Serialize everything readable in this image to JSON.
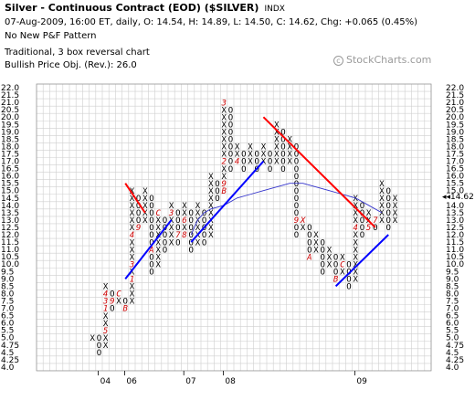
{
  "header": {
    "title": "Silver - Continuous Contract (EOD) ($SILVER)",
    "symbol_tag": "INDX",
    "quote_line": "07-Aug-2009, 16:00 ET, daily, O: 14.54, H: 14.89, L: 14.50, C: 14.62, Chg: +0.065 (0.45%)",
    "pattern": "No New P&F Pattern",
    "method": "Traditional, 3 box reversal chart",
    "objective": "Bullish Price Obj. (Rev.): 26.0"
  },
  "watermark": {
    "symbol": "c",
    "text": "StockCharts.com"
  },
  "chart_data": {
    "type": "point-and-figure",
    "box_levels": [
      "22.0",
      "21.5",
      "21.0",
      "20.5",
      "20.0",
      "19.5",
      "19.0",
      "18.5",
      "18.0",
      "17.5",
      "17.0",
      "16.5",
      "16.0",
      "15.5",
      "15.0",
      "14.5",
      "14.0",
      "13.5",
      "13.0",
      "12.5",
      "12.0",
      "11.5",
      "11.0",
      "10.5",
      "10.0",
      "9.5",
      "9.0",
      "8.5",
      "8.0",
      "7.5",
      "7.0",
      "6.5",
      "6.0",
      "5.5",
      "5.0",
      "4.75",
      "4.5",
      "4.25",
      "4.0"
    ],
    "x_labels": [
      {
        "label": "04",
        "col": 2
      },
      {
        "label": "06",
        "col": 6
      },
      {
        "label": "07",
        "col": 15
      },
      {
        "label": "08",
        "col": 21
      },
      {
        "label": "09",
        "col": 41
      }
    ],
    "current_price": "14.62",
    "last_close_row_label": "14.5",
    "grid": true,
    "columns": [
      {
        "type": "X",
        "low": 5,
        "high": 5
      },
      {
        "type": "O",
        "high": 5,
        "low": 4.5
      },
      {
        "type": "X",
        "low": 4.75,
        "high": 8.5
      },
      {
        "type": "O",
        "high": 8.0,
        "low": 7.0
      },
      {
        "type": "X",
        "low": 7.5,
        "high": 8.0
      },
      {
        "type": "O",
        "high": 7.5,
        "low": 7.0
      },
      {
        "type": "X",
        "low": 7.5,
        "high": 15.0
      },
      {
        "type": "O",
        "high": 14.5,
        "low": 12.5
      },
      {
        "type": "X",
        "low": 13.0,
        "high": 15.0
      },
      {
        "type": "O",
        "high": 14.5,
        "low": 9.5
      },
      {
        "type": "X",
        "low": 10.0,
        "high": 13.5
      },
      {
        "type": "O",
        "high": 13.0,
        "low": 11.0
      },
      {
        "type": "X",
        "low": 11.5,
        "high": 14.0
      },
      {
        "type": "O",
        "high": 13.5,
        "low": 11.5
      },
      {
        "type": "X",
        "low": 12.0,
        "high": 14.0
      },
      {
        "type": "O",
        "high": 13.5,
        "low": 11.0
      },
      {
        "type": "X",
        "low": 11.5,
        "high": 14.0
      },
      {
        "type": "O",
        "high": 13.5,
        "low": 11.5
      },
      {
        "type": "X",
        "low": 12.0,
        "high": 16.0
      },
      {
        "type": "O",
        "high": 15.5,
        "low": 14.5
      },
      {
        "type": "X",
        "low": 15.0,
        "high": 21.0
      },
      {
        "type": "O",
        "high": 20.5,
        "low": 16.5
      },
      {
        "type": "X",
        "low": 17.0,
        "high": 18.0
      },
      {
        "type": "O",
        "high": 17.5,
        "low": 16.5
      },
      {
        "type": "X",
        "low": 17.0,
        "high": 18.0
      },
      {
        "type": "O",
        "high": 17.5,
        "low": 16.5
      },
      {
        "type": "X",
        "low": 17.0,
        "high": 18.0
      },
      {
        "type": "O",
        "high": 17.5,
        "low": 16.5
      },
      {
        "type": "X",
        "low": 17.0,
        "high": 19.5
      },
      {
        "type": "O",
        "high": 19.0,
        "low": 16.5
      },
      {
        "type": "X",
        "low": 17.0,
        "high": 18.5
      },
      {
        "type": "O",
        "high": 18.0,
        "low": 12.0
      },
      {
        "type": "X",
        "low": 12.5,
        "high": 13.0
      },
      {
        "type": "O",
        "high": 12.5,
        "low": 10.5
      },
      {
        "type": "X",
        "low": 11.0,
        "high": 12.0
      },
      {
        "type": "O",
        "high": 11.5,
        "low": 9.5
      },
      {
        "type": "X",
        "low": 10.0,
        "high": 11.0
      },
      {
        "type": "O",
        "high": 10.5,
        "low": 9.0
      },
      {
        "type": "X",
        "low": 9.5,
        "high": 10.5
      },
      {
        "type": "O",
        "high": 10.0,
        "low": 8.5
      },
      {
        "type": "X",
        "low": 9.0,
        "high": 14.5
      },
      {
        "type": "O",
        "high": 14.0,
        "low": 12.0
      },
      {
        "type": "X",
        "low": 12.5,
        "high": 13.5
      },
      {
        "type": "O",
        "high": 13.0,
        "low": 12.5
      },
      {
        "type": "X",
        "low": 13.0,
        "high": 15.5
      },
      {
        "type": "O",
        "high": 15.0,
        "low": 12.5
      },
      {
        "type": "X",
        "low": 13.0,
        "high": 14.5
      }
    ],
    "month_markers": [
      {
        "col": 0,
        "price": 5.5,
        "label": "2"
      },
      {
        "col": 0,
        "price": 4.25,
        "label": "7"
      },
      {
        "col": 1,
        "price": 5.5,
        "label": "C"
      },
      {
        "col": 2,
        "price": 5.5,
        "label": "5"
      },
      {
        "col": 2,
        "price": 7.0,
        "label": "1"
      },
      {
        "col": 2,
        "price": 7.5,
        "label": "3"
      },
      {
        "col": 2,
        "price": 8.0,
        "label": "4"
      },
      {
        "col": 3,
        "price": 7.5,
        "label": "9"
      },
      {
        "col": 4,
        "price": 6.5,
        "label": "8"
      },
      {
        "col": 4,
        "price": 8.0,
        "label": "C"
      },
      {
        "col": 5,
        "price": 7.0,
        "label": "B"
      },
      {
        "col": 6,
        "price": 9.0,
        "label": "1"
      },
      {
        "col": 6,
        "price": 10.0,
        "label": "3"
      },
      {
        "col": 6,
        "price": 12.0,
        "label": "4"
      },
      {
        "col": 7,
        "price": 11.5,
        "label": "6"
      },
      {
        "col": 7,
        "price": 12.5,
        "label": "9"
      },
      {
        "col": 8,
        "price": 11.5,
        "label": "7"
      },
      {
        "col": 8,
        "price": 12.0,
        "label": "B"
      },
      {
        "col": 9,
        "price": 11.0,
        "label": "A"
      },
      {
        "col": 10,
        "price": 13.5,
        "label": "C"
      },
      {
        "col": 12,
        "price": 13.5,
        "label": "3"
      },
      {
        "col": 13,
        "price": 12.0,
        "label": "7"
      },
      {
        "col": 14,
        "price": 12.0,
        "label": "8"
      },
      {
        "col": 14,
        "price": 13.0,
        "label": "6"
      },
      {
        "col": 20,
        "price": 15.0,
        "label": "B"
      },
      {
        "col": 20,
        "price": 15.5,
        "label": "9"
      },
      {
        "col": 20,
        "price": 14.5,
        "label": "A"
      },
      {
        "col": 20,
        "price": 17.0,
        "label": "2"
      },
      {
        "col": 20,
        "price": 21.0,
        "label": "3"
      },
      {
        "col": 21,
        "price": 14.5,
        "label": "1"
      },
      {
        "col": 22,
        "price": 17.0,
        "label": "4"
      },
      {
        "col": 30,
        "price": 16.5,
        "label": "7"
      },
      {
        "col": 30,
        "price": 16.0,
        "label": "8"
      },
      {
        "col": 31,
        "price": 13.0,
        "label": "9"
      },
      {
        "col": 32,
        "price": 13.0,
        "label": "X"
      },
      {
        "col": 33,
        "price": 10.5,
        "label": "A"
      },
      {
        "col": 37,
        "price": 9.0,
        "label": "B"
      },
      {
        "col": 38,
        "price": 10.0,
        "label": "C"
      },
      {
        "col": 38,
        "price": 12.0,
        "label": "1"
      },
      {
        "col": 39,
        "price": 13.0,
        "label": "3"
      },
      {
        "col": 40,
        "price": 12.5,
        "label": "4"
      },
      {
        "col": 40,
        "price": 15.5,
        "label": "6"
      },
      {
        "col": 42,
        "price": 12.5,
        "label": "5"
      },
      {
        "col": 43,
        "price": 14.5,
        "label": "8"
      },
      {
        "col": 43,
        "price": 13.0,
        "label": "7"
      }
    ],
    "trendlines": [
      {
        "color": "#ff0000",
        "from": {
          "col": 5,
          "price": 15.5
        },
        "to": {
          "col": 8,
          "price": 13.5
        }
      },
      {
        "color": "#0000ff",
        "from": {
          "col": 5,
          "price": 9.0
        },
        "to": {
          "col": 12,
          "price": 13.0
        }
      },
      {
        "color": "#0000ff",
        "from": {
          "col": 15,
          "price": 11.5
        },
        "to": {
          "col": 26,
          "price": 17.0
        }
      },
      {
        "color": "#ff0000",
        "from": {
          "col": 26,
          "price": 20.0
        },
        "to": {
          "col": 43,
          "price": 12.5
        }
      },
      {
        "color": "#0000ff",
        "from": {
          "col": 37,
          "price": 8.5
        },
        "to": {
          "col": 45,
          "price": 12.0
        }
      }
    ],
    "moving_average": {
      "color": "#3333cc",
      "points": [
        {
          "col": 15,
          "price": 12.0
        },
        {
          "col": 16,
          "price": 13.0
        },
        {
          "col": 17,
          "price": 13.5
        },
        {
          "col": 18,
          "price": 13.75
        },
        {
          "col": 20,
          "price": 14.0
        },
        {
          "col": 22,
          "price": 14.5
        },
        {
          "col": 24,
          "price": 14.75
        },
        {
          "col": 26,
          "price": 15.0
        },
        {
          "col": 28,
          "price": 15.25
        },
        {
          "col": 30,
          "price": 15.5
        },
        {
          "col": 32,
          "price": 15.5
        },
        {
          "col": 34,
          "price": 15.25
        },
        {
          "col": 36,
          "price": 15.0
        },
        {
          "col": 38,
          "price": 14.75
        },
        {
          "col": 40,
          "price": 14.5
        },
        {
          "col": 42,
          "price": 14.0
        },
        {
          "col": 44,
          "price": 13.5
        }
      ]
    }
  }
}
